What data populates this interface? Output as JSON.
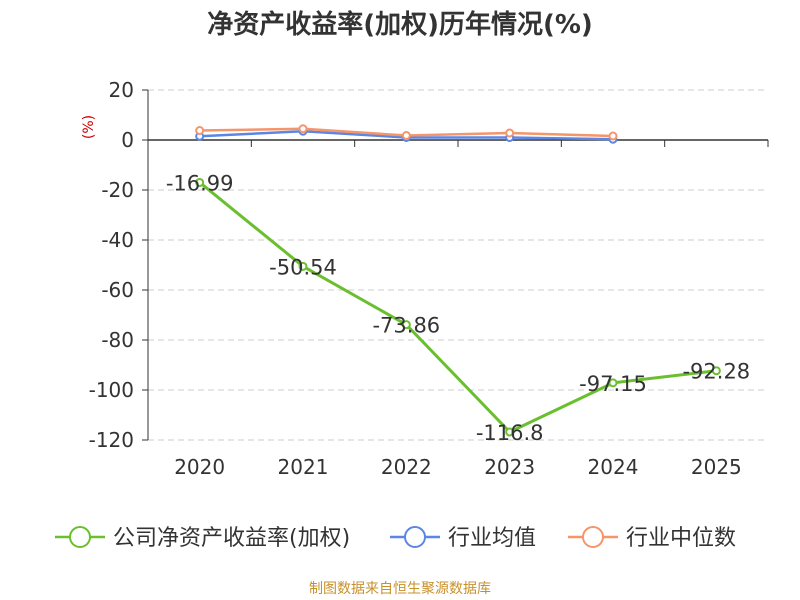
{
  "chart_data": {
    "type": "line",
    "title": "净资产收益率(加权)历年情况(%)",
    "ylabel": "(%)",
    "xlabel": "",
    "ylim": [
      -120,
      20
    ],
    "yticks": [
      20,
      0,
      -20,
      -40,
      -60,
      -80,
      -100,
      -120
    ],
    "grid": true,
    "legend_position": "bottom",
    "categories": [
      "2020",
      "2021",
      "2022",
      "2023",
      "2024",
      "2025"
    ],
    "series": [
      {
        "name": "公司净资产收益率(加权)",
        "color": "#6abf2e",
        "values": [
          -16.99,
          -50.54,
          -73.86,
          -116.8,
          -97.15,
          -92.28
        ],
        "labels": [
          "-16.99",
          "-50.54",
          "-73.86",
          "-116.8",
          "-97.15",
          "-92.28"
        ]
      },
      {
        "name": "行业均值",
        "color": "#5b86e5",
        "values": [
          1.5,
          3.5,
          1.0,
          1.0,
          0.3,
          null
        ]
      },
      {
        "name": "行业中位数",
        "color": "#f4956a",
        "values": [
          3.8,
          4.5,
          1.8,
          2.8,
          1.6,
          null
        ]
      }
    ]
  },
  "source": "制图数据来自恒生聚源数据库"
}
